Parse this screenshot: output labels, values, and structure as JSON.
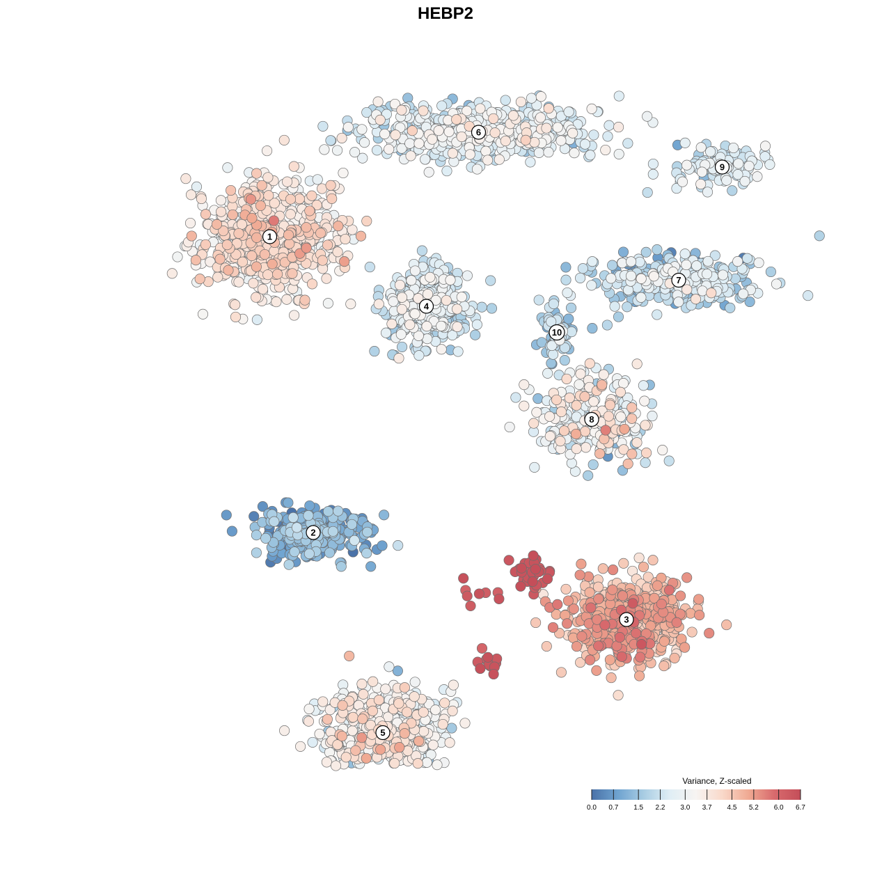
{
  "chart_data": {
    "type": "scatter",
    "title": "HEBP2",
    "xlabel": "",
    "ylabel": "",
    "grid": false,
    "axes_visible": false,
    "legend_placement": "bottom-right",
    "colorbar": {
      "title": "Variance, Z-scaled",
      "min": 0.0,
      "max": 6.7,
      "ticks": [
        0.0,
        0.7,
        1.5,
        2.2,
        3.0,
        3.7,
        4.5,
        5.2,
        6.0,
        6.7
      ],
      "tick_labels": [
        "0.0",
        "0.7",
        "1.5",
        "2.2",
        "3.0",
        "3.7",
        "4.5",
        "5.2",
        "6.0",
        "6.7"
      ],
      "colors": [
        "#4a72a8",
        "#6fa3d0",
        "#a9cde3",
        "#e0eef5",
        "#f7f4f2",
        "#f9d9ca",
        "#f0aa93",
        "#d86a6d",
        "#c44e59"
      ]
    },
    "clusters": [
      {
        "label": "1",
        "x": -9.5,
        "y": 11.0,
        "spread": [
          3.6,
          3.0
        ],
        "n": 640,
        "mean": 3.7,
        "sd": 0.55
      },
      {
        "label": "2",
        "x": -7.0,
        "y": -6.0,
        "spread": [
          3.0,
          1.3
        ],
        "n": 300,
        "mean": 1.0,
        "sd": 0.55
      },
      {
        "label": "3",
        "x": 11.0,
        "y": -11.0,
        "spread": [
          3.2,
          2.2
        ],
        "n": 560,
        "mean": 4.7,
        "sd": 0.55
      },
      {
        "label": "4",
        "x": -0.5,
        "y": 7.0,
        "spread": [
          2.2,
          2.0
        ],
        "n": 350,
        "mean": 2.4,
        "sd": 0.6
      },
      {
        "label": "5",
        "x": -3.0,
        "y": -17.5,
        "spread": [
          3.4,
          2.4
        ],
        "n": 560,
        "mean": 3.1,
        "sd": 0.7
      },
      {
        "label": "6",
        "x": 2.5,
        "y": 17.0,
        "spread": [
          6.0,
          1.4
        ],
        "n": 600,
        "mean": 2.6,
        "sd": 0.6
      },
      {
        "label": "7",
        "x": 14.0,
        "y": 8.5,
        "spread": [
          4.5,
          1.5
        ],
        "n": 290,
        "mean": 2.1,
        "sd": 0.7
      },
      {
        "label": "8",
        "x": 9.0,
        "y": 0.5,
        "spread": [
          3.0,
          2.4
        ],
        "n": 240,
        "mean": 3.0,
        "sd": 0.8
      },
      {
        "label": "9",
        "x": 16.5,
        "y": 15.0,
        "spread": [
          2.5,
          1.2
        ],
        "n": 110,
        "mean": 2.4,
        "sd": 0.5
      },
      {
        "label": "10",
        "x": 7.0,
        "y": 5.5,
        "spread": [
          0.8,
          1.5
        ],
        "n": 70,
        "mean": 1.8,
        "sd": 0.6
      }
    ],
    "hotspots": [
      {
        "x": 5.5,
        "y": -8.5,
        "spread": [
          1.4,
          0.9
        ],
        "n": 35,
        "mean": 6.5,
        "sd": 0.15
      },
      {
        "x": 2.8,
        "y": -13.5,
        "spread": [
          1.0,
          0.7
        ],
        "n": 12,
        "mean": 6.4,
        "sd": 0.2
      },
      {
        "x": 2.0,
        "y": -9.5,
        "spread": [
          1.5,
          0.8
        ],
        "n": 8,
        "mean": 6.3,
        "sd": 0.2
      }
    ]
  }
}
